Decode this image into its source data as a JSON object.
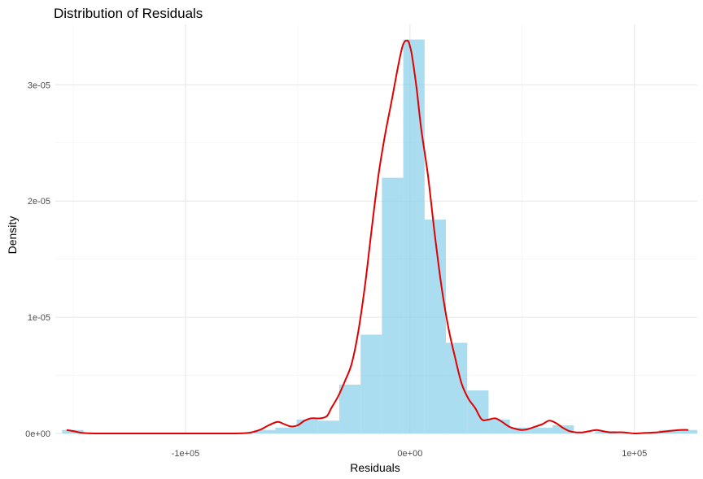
{
  "chart_data": {
    "type": "bar",
    "subtype": "histogram-with-density",
    "title": "Distribution of Residuals",
    "xlabel": "Residuals",
    "ylabel": "Density",
    "xlim": [
      -158000,
      128000
    ],
    "ylim": [
      0,
      3.52e-05
    ],
    "x_ticks": [
      {
        "value": -100000,
        "label": "-1e+05"
      },
      {
        "value": 0,
        "label": "0e+00"
      },
      {
        "value": 100000,
        "label": "1e+05"
      }
    ],
    "y_ticks": [
      {
        "value": 0,
        "label": "0e+00"
      },
      {
        "value": 1e-05,
        "label": "1e-05"
      },
      {
        "value": 2e-05,
        "label": "2e-05"
      },
      {
        "value": 3e-05,
        "label": "3e-05"
      }
    ],
    "x_minor_gridlines": [
      -150000,
      -50000,
      50000
    ],
    "y_minor_gridlines": [
      5e-06,
      1.5e-05,
      2.5e-05
    ],
    "grid": true,
    "bin_width": 9500,
    "bar_color": "#87CEEB",
    "bar_opacity": 0.7,
    "density_color": "#E00000",
    "bins": [
      {
        "x0": -155000,
        "x1": -145500,
        "density": 3e-07
      },
      {
        "x0": -145500,
        "x1": -136000,
        "density": 0
      },
      {
        "x0": -136000,
        "x1": -126500,
        "density": 0
      },
      {
        "x0": -126500,
        "x1": -117000,
        "density": 0
      },
      {
        "x0": -117000,
        "x1": -107500,
        "density": 0
      },
      {
        "x0": -107500,
        "x1": -98000,
        "density": 0
      },
      {
        "x0": -98000,
        "x1": -88500,
        "density": 0
      },
      {
        "x0": -88500,
        "x1": -79000,
        "density": 0
      },
      {
        "x0": -79000,
        "x1": -69500,
        "density": 0
      },
      {
        "x0": -69500,
        "x1": -60000,
        "density": 3e-07
      },
      {
        "x0": -60000,
        "x1": -50500,
        "density": 5e-07
      },
      {
        "x0": -50500,
        "x1": -41000,
        "density": 1.2e-06
      },
      {
        "x0": -41000,
        "x1": -31500,
        "density": 1.1e-06
      },
      {
        "x0": -31500,
        "x1": -22000,
        "density": 4.2e-06
      },
      {
        "x0": -22000,
        "x1": -12500,
        "density": 8.5e-06
      },
      {
        "x0": -12500,
        "x1": -3000,
        "density": 2.2e-05
      },
      {
        "x0": -3000,
        "x1": 6500,
        "density": 3.39e-05
      },
      {
        "x0": 6500,
        "x1": 16000,
        "density": 1.84e-05
      },
      {
        "x0": 16000,
        "x1": 25500,
        "density": 7.8e-06
      },
      {
        "x0": 25500,
        "x1": 35000,
        "density": 3.7e-06
      },
      {
        "x0": 35000,
        "x1": 44500,
        "density": 1.2e-06
      },
      {
        "x0": 44500,
        "x1": 54000,
        "density": 5e-07
      },
      {
        "x0": 54000,
        "x1": 63500,
        "density": 5e-07
      },
      {
        "x0": 63500,
        "x1": 73000,
        "density": 7e-07
      },
      {
        "x0": 73000,
        "x1": 82500,
        "density": 0
      },
      {
        "x0": 82500,
        "x1": 92000,
        "density": 2e-07
      },
      {
        "x0": 92000,
        "x1": 101500,
        "density": 0
      },
      {
        "x0": 101500,
        "x1": 111000,
        "density": 0
      },
      {
        "x0": 111000,
        "x1": 120500,
        "density": 3e-07
      },
      {
        "x0": 120500,
        "x1": 128000,
        "density": 3e-07
      }
    ],
    "density_curve": {
      "x": [
        -153000,
        -150000,
        -146000,
        -140000,
        -130000,
        -100000,
        -80000,
        -72000,
        -67000,
        -63000,
        -59000,
        -56000,
        -53000,
        -50000,
        -47000,
        -44000,
        -40000,
        -37000,
        -35000,
        -32000,
        -29000,
        -26000,
        -23000,
        -20000,
        -17000,
        -14000,
        -11000,
        -8000,
        -5000,
        -3000,
        -1000,
        0,
        1000,
        3000,
        5000,
        8000,
        11000,
        14000,
        17000,
        20000,
        23000,
        26000,
        29000,
        32000,
        35000,
        38000,
        41000,
        44000,
        47000,
        50000,
        53000,
        56000,
        59000,
        62000,
        65000,
        68000,
        71000,
        74000,
        77000,
        80000,
        83000,
        86000,
        89000,
        95000,
        100000,
        105000,
        110000,
        115000,
        120000,
        124000
      ],
      "y": [
        3e-07,
        2e-07,
        5e-08,
        0,
        0,
        0,
        0,
        5e-08,
        3e-07,
        7e-07,
        1e-06,
        8e-07,
        6e-07,
        7e-07,
        1.1e-06,
        1.3e-06,
        1.3e-06,
        1.5e-06,
        2.2e-06,
        3.2e-06,
        4.5e-06,
        6e-06,
        8.8e-06,
        1.28e-05,
        1.77e-05,
        2.23e-05,
        2.58e-05,
        2.88e-05,
        3.19e-05,
        3.35e-05,
        3.38e-05,
        3.33e-05,
        3.24e-05,
        2.96e-05,
        2.62e-05,
        2.22e-05,
        1.72e-05,
        1.27e-05,
        9.2e-06,
        6.6e-06,
        4.3e-06,
        3e-06,
        2.2e-06,
        1.2e-06,
        1.2e-06,
        1.3e-06,
        1e-06,
        6e-07,
        4e-07,
        3e-07,
        4e-07,
        6e-07,
        8e-07,
        1.1e-06,
        9e-07,
        5e-07,
        2e-07,
        1e-07,
        1e-07,
        2e-07,
        3e-07,
        2e-07,
        1e-07,
        1e-07,
        0,
        5e-08,
        1e-07,
        2e-07,
        3e-07,
        3e-07
      ]
    }
  }
}
